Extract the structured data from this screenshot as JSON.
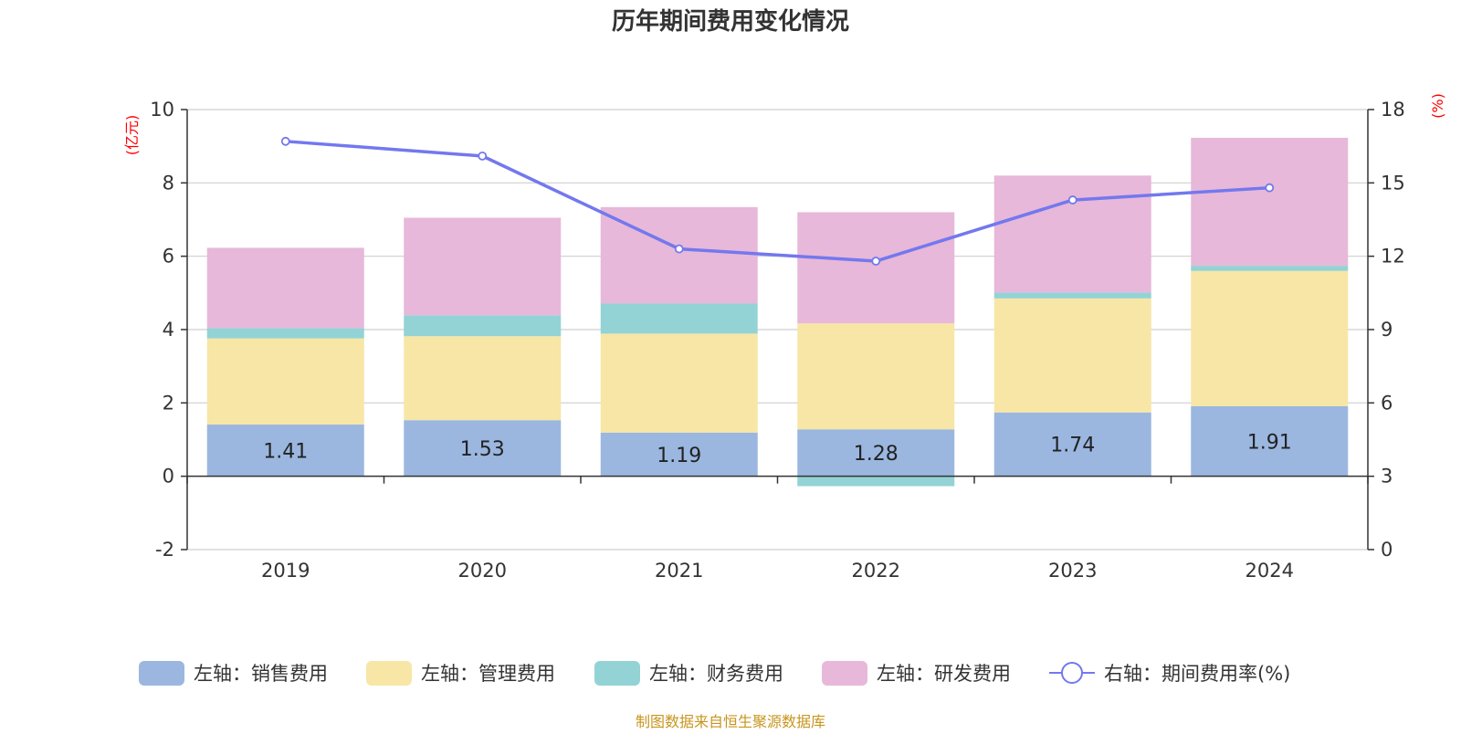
{
  "title": "历年期间费用变化情况",
  "source": "制图数据来自恒生聚源数据库",
  "colors": {
    "sales": "#9bb7e0",
    "admin": "#f7e6a6",
    "finance": "#93d3d5",
    "rd": "#e7b8d9",
    "rate": "#7378ee"
  },
  "chart_data": {
    "type": "bar",
    "stacked": true,
    "categories": [
      "2019",
      "2020",
      "2021",
      "2022",
      "2023",
      "2024"
    ],
    "series": [
      {
        "key": "sales",
        "name": "左轴：销售费用",
        "axis": "left",
        "values": [
          1.41,
          1.53,
          1.19,
          1.28,
          1.74,
          1.91
        ]
      },
      {
        "key": "admin",
        "name": "左轴：管理费用",
        "axis": "left",
        "values": [
          2.35,
          2.29,
          2.7,
          2.89,
          3.11,
          3.69
        ]
      },
      {
        "key": "finance",
        "name": "左轴：财务费用",
        "axis": "left",
        "values": [
          0.28,
          0.57,
          0.82,
          -0.27,
          0.16,
          0.14
        ]
      },
      {
        "key": "rd",
        "name": "左轴：研发费用",
        "axis": "left",
        "values": [
          2.19,
          2.66,
          2.63,
          3.03,
          3.19,
          3.49
        ]
      },
      {
        "key": "rate",
        "name": "右轴：期间费用率(%)",
        "axis": "right",
        "type": "line",
        "values": [
          16.7,
          16.1,
          12.3,
          11.8,
          14.3,
          14.8
        ]
      }
    ],
    "data_labels": [
      "1.41",
      "1.53",
      "1.19",
      "1.28",
      "1.74",
      "1.91"
    ],
    "left_axis": {
      "unit": "(亿元)",
      "ylim": [
        -2,
        10
      ],
      "ticks": [
        "-2",
        "0",
        "2",
        "4",
        "6",
        "8",
        "10"
      ],
      "tick_values": [
        -2,
        0,
        2,
        4,
        6,
        8,
        10
      ]
    },
    "right_axis": {
      "unit": "(%)",
      "ylim": [
        0,
        18
      ],
      "ticks": [
        "0",
        "3",
        "6",
        "9",
        "12",
        "15",
        "18"
      ],
      "tick_values": [
        0,
        3,
        6,
        9,
        12,
        15,
        18
      ]
    },
    "legend_position": "bottom",
    "grid": true
  }
}
